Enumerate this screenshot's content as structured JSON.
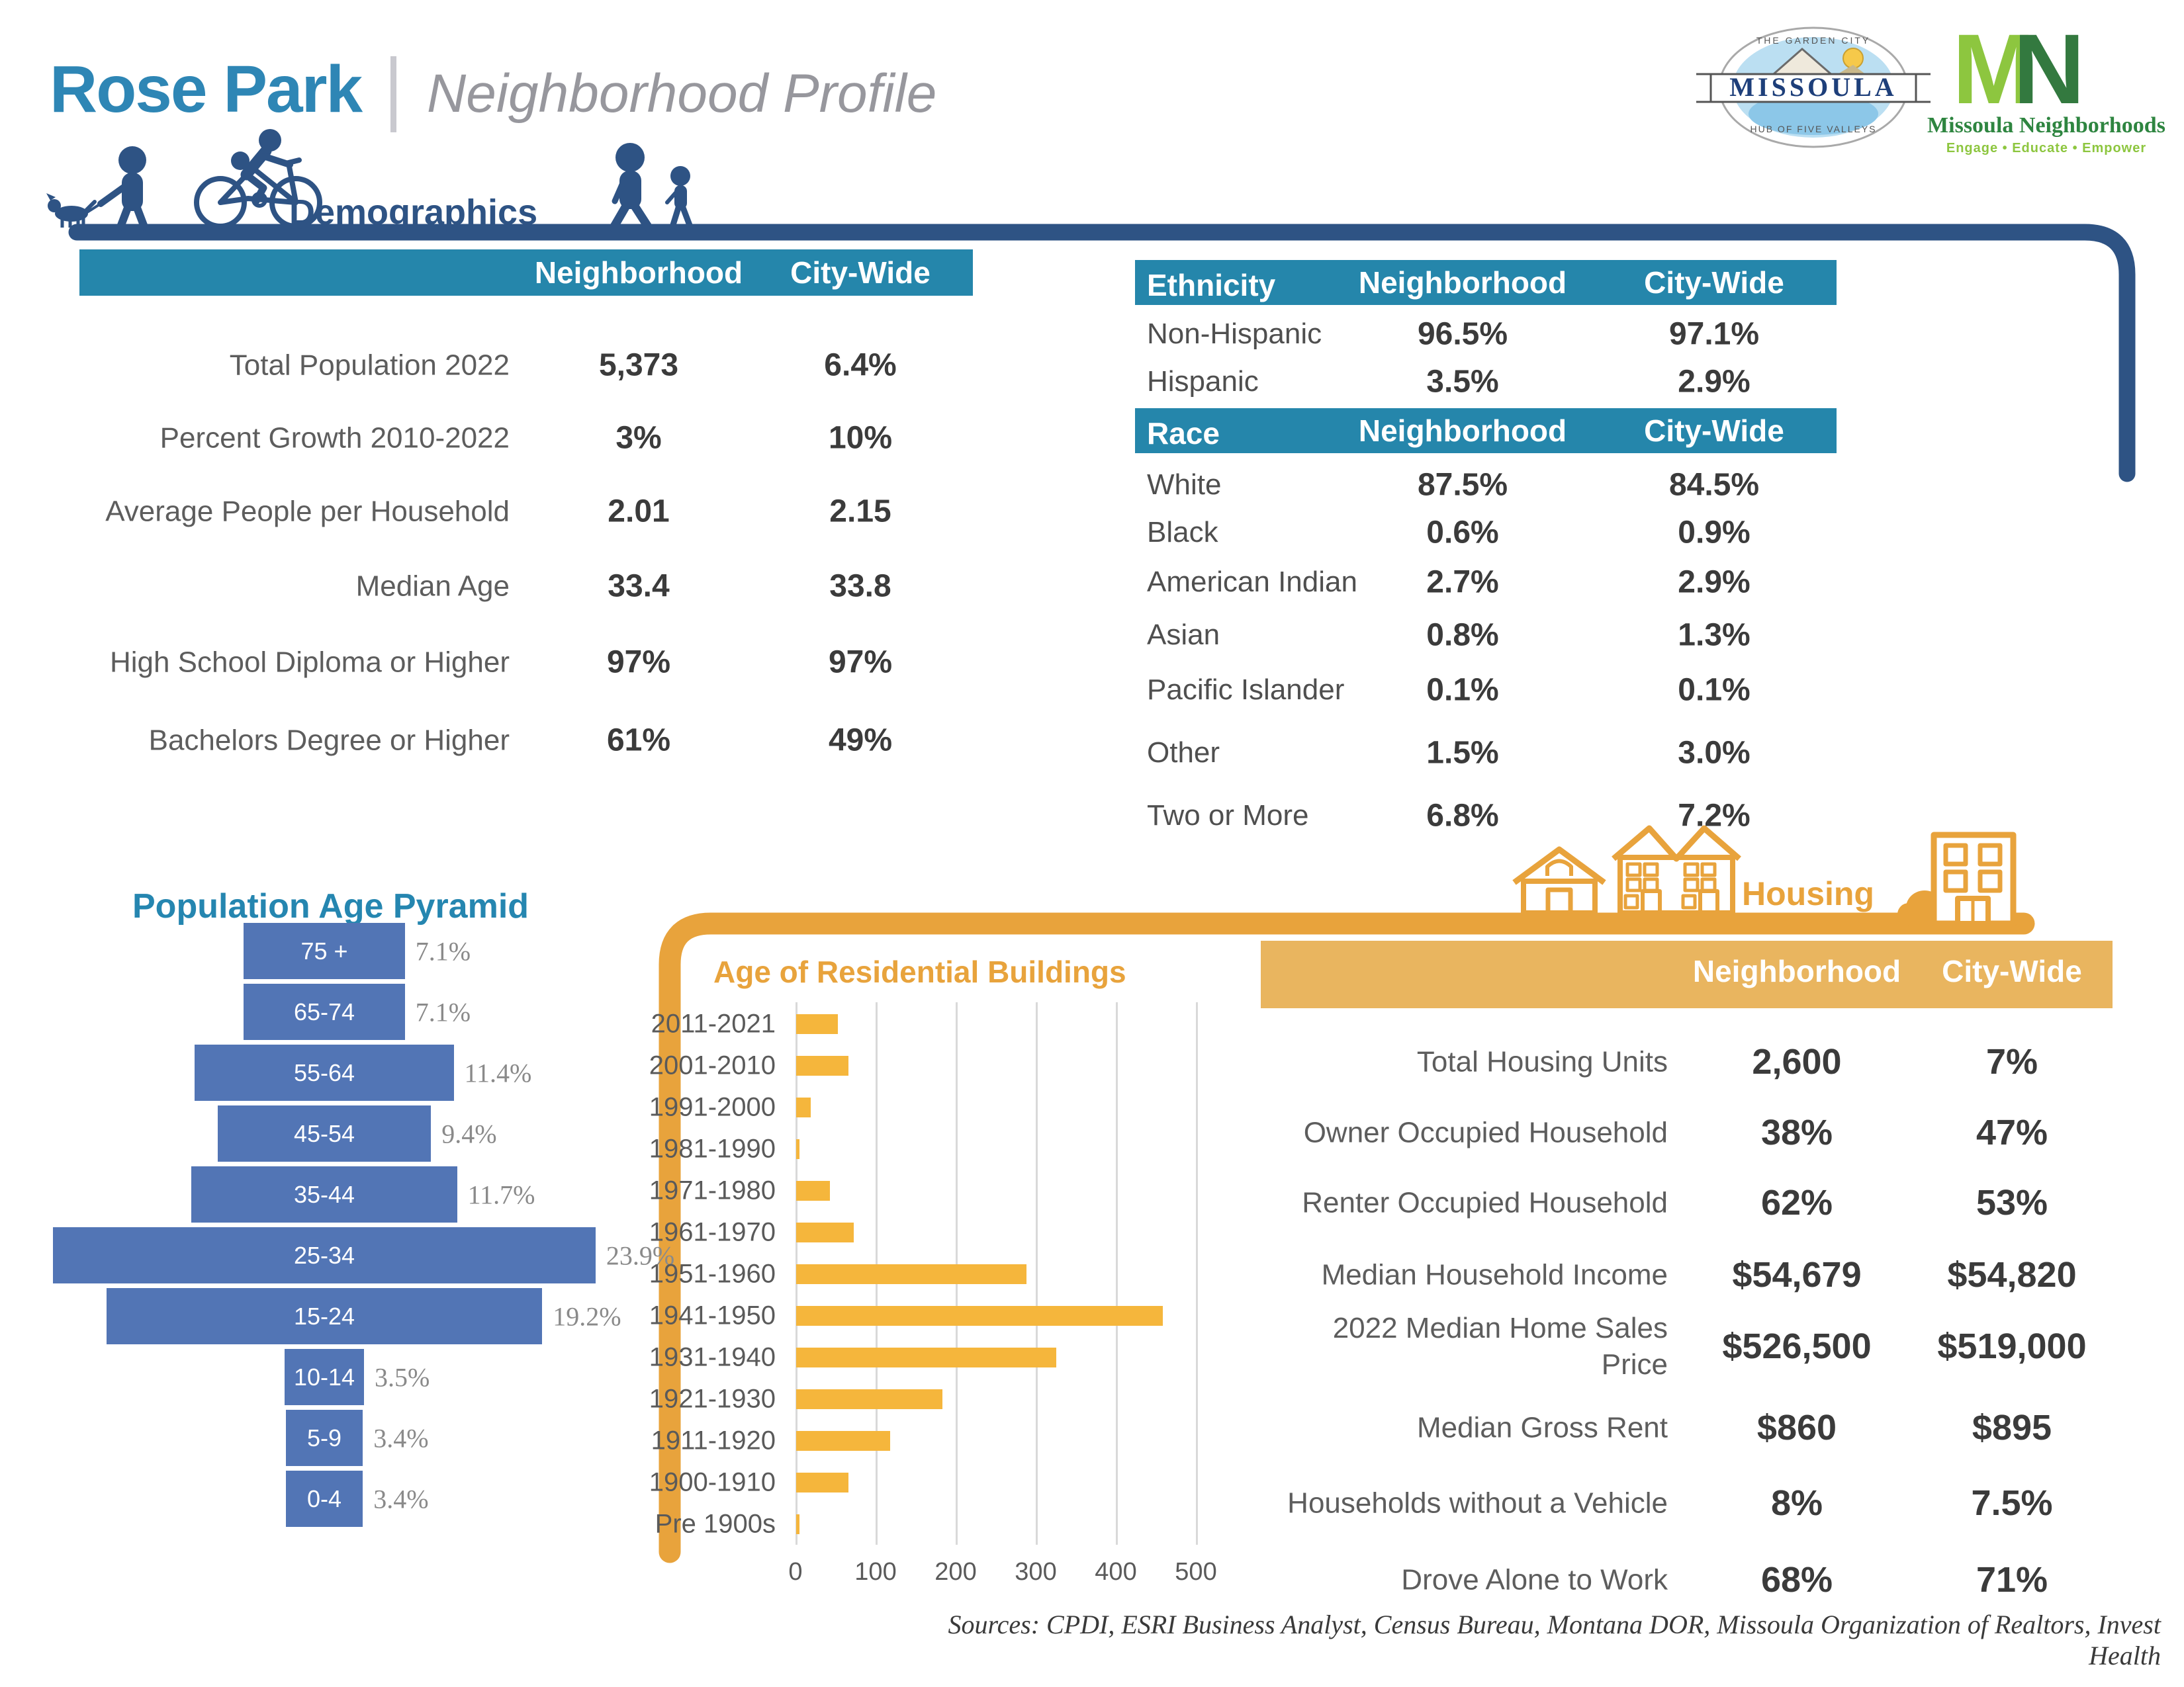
{
  "page": {
    "title": "Rose Park",
    "subtitle": "Neighborhood Profile"
  },
  "logos": {
    "missoula": {
      "top_text": "THE GARDEN CITY",
      "name": "MISSOULA",
      "bottom_text": "HUB OF FIVE VALLEYS"
    },
    "mn": {
      "m": "M",
      "n": "N",
      "name": "Missoula Neighborhoods",
      "tagline": "Engage • Educate • Empower"
    }
  },
  "sections": {
    "demographics": "Demographics",
    "housing": "Housing"
  },
  "demographics_table": {
    "col1": "Neighborhood",
    "col2": "City-Wide",
    "rows": [
      {
        "label": "Total Population 2022",
        "v1": "5,373",
        "v2": "6.4%"
      },
      {
        "label": "Percent Growth 2010-2022",
        "v1": "3%",
        "v2": "10%"
      },
      {
        "label": "Average People per Household",
        "v1": "2.01",
        "v2": "2.15"
      },
      {
        "label": "Median Age",
        "v1": "33.4",
        "v2": "33.8"
      },
      {
        "label": "High School Diploma or Higher",
        "v1": "97%",
        "v2": "97%"
      },
      {
        "label": "Bachelors Degree or Higher",
        "v1": "61%",
        "v2": "49%"
      }
    ]
  },
  "ethnicity_table": {
    "header": "Ethnicity",
    "col1": "Neighborhood",
    "col2": "City-Wide",
    "rows": [
      {
        "label": "Non-Hispanic",
        "v1": "96.5%",
        "v2": "97.1%"
      },
      {
        "label": "Hispanic",
        "v1": "3.5%",
        "v2": "2.9%"
      }
    ]
  },
  "race_table": {
    "header": "Race",
    "col1": "Neighborhood",
    "col2": "City-Wide",
    "rows": [
      {
        "label": "White",
        "v1": "87.5%",
        "v2": "84.5%"
      },
      {
        "label": "Black",
        "v1": "0.6%",
        "v2": "0.9%"
      },
      {
        "label": "American Indian",
        "v1": "2.7%",
        "v2": "2.9%"
      },
      {
        "label": "Asian",
        "v1": "0.8%",
        "v2": "1.3%"
      },
      {
        "label": "Pacific Islander",
        "v1": "0.1%",
        "v2": "0.1%"
      },
      {
        "label": "Other",
        "v1": "1.5%",
        "v2": "3.0%"
      },
      {
        "label": "Two or More",
        "v1": "6.8%",
        "v2": "7.2%"
      }
    ]
  },
  "housing_table": {
    "col1": "Neighborhood",
    "col2": "City-Wide",
    "rows": [
      {
        "label": "Total Housing Units",
        "v1": "2,600",
        "v2": "7%"
      },
      {
        "label": "Owner Occupied Household",
        "v1": "38%",
        "v2": "47%"
      },
      {
        "label": "Renter Occupied Household",
        "v1": "62%",
        "v2": "53%"
      },
      {
        "label": "Median Household Income",
        "v1": "$54,679",
        "v2": "$54,820"
      },
      {
        "label": "2022 Median Home Sales Price",
        "v1": "$526,500",
        "v2": "$519,000"
      },
      {
        "label": "Median Gross Rent",
        "v1": "$860",
        "v2": "$895"
      },
      {
        "label": "Households without a Vehicle",
        "v1": "8%",
        "v2": "7.5%"
      },
      {
        "label": "Drove Alone to Work",
        "v1": "68%",
        "v2": "71%"
      }
    ]
  },
  "chart_data": [
    {
      "type": "bar",
      "title": "Population Age Pyramid",
      "orientation": "horizontal-centered-pyramid",
      "categories": [
        "75 +",
        "65-74",
        "55-64",
        "45-54",
        "35-44",
        "25-34",
        "15-24",
        "10-14",
        "5-9",
        "0-4"
      ],
      "values": [
        7.1,
        7.1,
        11.4,
        9.4,
        11.7,
        23.9,
        19.2,
        3.5,
        3.4,
        3.4
      ],
      "value_labels": [
        "7.1%",
        "7.1%",
        "11.4%",
        "9.4%",
        "11.7%",
        "23.9%",
        "19.2%",
        "3.5%",
        "3.4%",
        "3.4%"
      ],
      "unit": "percent of population",
      "legend": "none",
      "grid": "off"
    },
    {
      "type": "bar",
      "title": "Age of Residential Buildings",
      "orientation": "horizontal",
      "categories": [
        "2011-2021",
        "2001-2010",
        "1991-2000",
        "1981-1990",
        "1971-1980",
        "1961-1970",
        "1951-1960",
        "1941-1950",
        "1931-1940",
        "1921-1930",
        "1911-1920",
        "1900-1910",
        "Pre 1900s"
      ],
      "values": [
        52,
        65,
        18,
        4,
        42,
        72,
        288,
        458,
        325,
        183,
        117,
        65,
        4
      ],
      "xlim": [
        0,
        500
      ],
      "xticks": [
        "0",
        "100",
        "200",
        "300",
        "400",
        "500"
      ],
      "ylabel": "",
      "xlabel": "",
      "legend": "none",
      "grid": "vertical"
    }
  ],
  "colors": {
    "navy": "#2E5384",
    "teal_header": "#2586AB",
    "title_blue": "#2E86B5",
    "pyramid_bar": "#5275B5",
    "orange": "#E8A33C",
    "orange_bar": "#F5B63C",
    "housing_header": "#E9B55F"
  },
  "sources": "Sources: CPDI, ESRI Business Analyst, Census Bureau, Montana DOR, Missoula Organization of Realtors, Invest Health"
}
